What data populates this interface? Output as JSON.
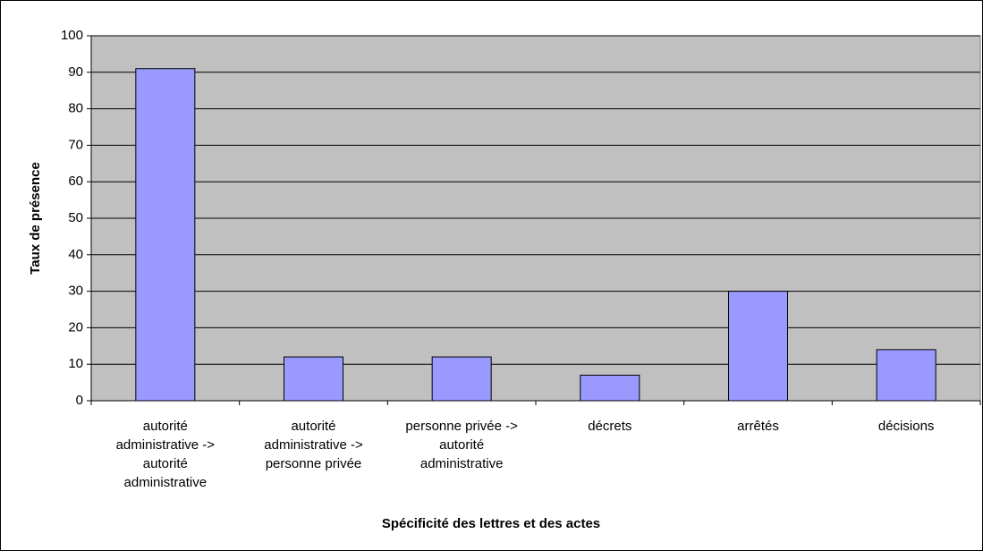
{
  "chart_data": {
    "type": "bar",
    "x_label": "Spécificité des lettres et des actes",
    "y_label": "Taux de présence",
    "categories": [
      "autorité\nadministrative ->\nautorité\nadministrative",
      "autorité\nadministrative ->\npersonne privée",
      "personne privée ->\nautorité\nadministrative",
      "décrets",
      "arrêtés",
      "décisions"
    ],
    "values": [
      91,
      12,
      12,
      7,
      30,
      14
    ],
    "color": "#9999ff",
    "ylim": [
      0,
      100
    ],
    "yticks": [
      0,
      10,
      20,
      30,
      40,
      50,
      60,
      70,
      80,
      90,
      100
    ],
    "grid": true
  }
}
